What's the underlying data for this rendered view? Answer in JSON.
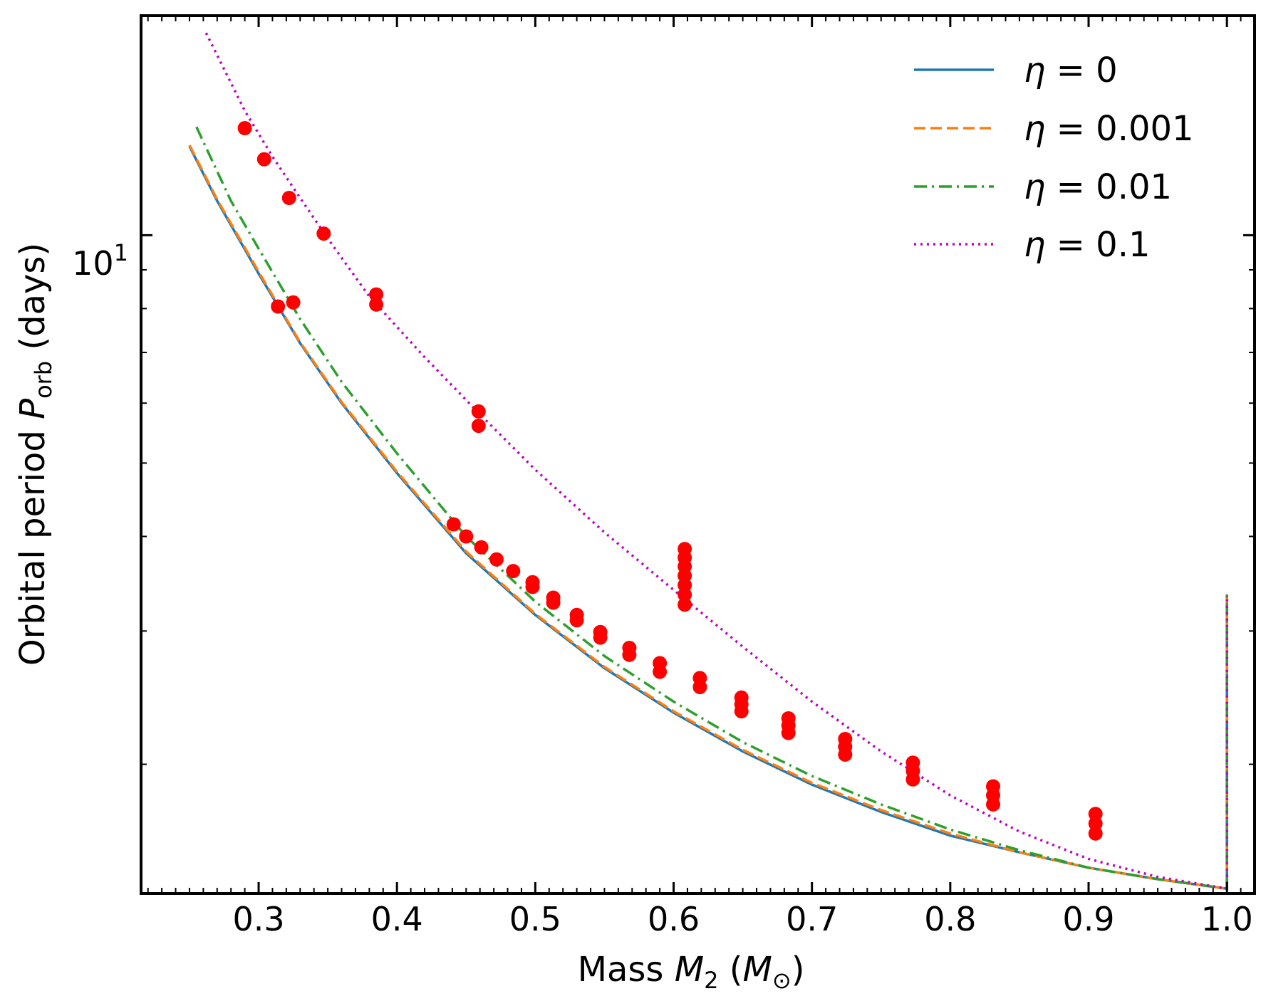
{
  "chart_data": {
    "type": "line",
    "xlabel": {
      "prefix": "Mass ",
      "var": "M",
      "sub": "2",
      "open": " (",
      "unit_var": "M",
      "unit_sub": "⊙",
      "close": ")"
    },
    "ylabel": {
      "prefix": "Orbital period ",
      "var": "P",
      "sub": "orb",
      "suffix": " (days)"
    },
    "xlim": [
      0.215,
      1.02
    ],
    "ylim": [
      1.35,
      19.5
    ],
    "y_scale": "log",
    "grid": false,
    "legend_position": "top-right",
    "x_ticks": [
      "0.3",
      "0.4",
      "0.5",
      "0.6",
      "0.7",
      "0.8",
      "0.9",
      "1.0"
    ],
    "y_major_tick": {
      "value": 10,
      "base": "10",
      "exp": "1"
    },
    "y_minor_ticks": [
      2,
      3,
      4,
      5,
      6,
      7,
      8,
      9
    ],
    "series": [
      {
        "name": "η = 0",
        "symbol": "η",
        "value": "0",
        "color": "#1f77b4",
        "dash": "solid",
        "x": [
          0.25,
          0.27,
          0.3,
          0.33,
          0.36,
          0.4,
          0.45,
          0.5,
          0.55,
          0.6,
          0.65,
          0.7,
          0.75,
          0.8,
          0.85,
          0.9,
          0.95,
          1.0,
          1.0
        ],
        "y": [
          13.1,
          11.1,
          8.9,
          7.2,
          6.0,
          4.85,
          3.8,
          3.15,
          2.68,
          2.34,
          2.08,
          1.88,
          1.73,
          1.61,
          1.53,
          1.46,
          1.41,
          1.37,
          3.35
        ]
      },
      {
        "name": "η = 0.001",
        "symbol": "η",
        "value": "0.001",
        "color": "#ff7f0e",
        "dash": "dashed",
        "x": [
          0.25,
          0.27,
          0.3,
          0.33,
          0.36,
          0.4,
          0.45,
          0.5,
          0.55,
          0.6,
          0.65,
          0.7,
          0.75,
          0.8,
          0.85,
          0.9,
          0.95,
          1.0,
          1.0
        ],
        "y": [
          13.15,
          11.15,
          8.95,
          7.22,
          6.02,
          4.87,
          3.82,
          3.16,
          2.69,
          2.35,
          2.09,
          1.89,
          1.74,
          1.62,
          1.53,
          1.46,
          1.41,
          1.37,
          3.35
        ]
      },
      {
        "name": "η = 0.01",
        "symbol": "η",
        "value": "0.01",
        "color": "#2ca02c",
        "dash": "dashdot",
        "x": [
          0.255,
          0.28,
          0.3,
          0.33,
          0.36,
          0.4,
          0.45,
          0.5,
          0.55,
          0.6,
          0.65,
          0.7,
          0.75,
          0.8,
          0.85,
          0.9,
          0.95,
          1.0,
          1.0
        ],
        "y": [
          13.9,
          11.1,
          9.6,
          7.75,
          6.4,
          5.15,
          4.0,
          3.28,
          2.78,
          2.42,
          2.14,
          1.93,
          1.77,
          1.64,
          1.54,
          1.46,
          1.41,
          1.37,
          3.35
        ]
      },
      {
        "name": "η = 0.1",
        "symbol": "η",
        "value": "0.1",
        "color": "#bf00bf",
        "dash": "dotted",
        "x": [
          0.262,
          0.29,
          0.31,
          0.33,
          0.35,
          0.38,
          0.42,
          0.46,
          0.5,
          0.55,
          0.6,
          0.65,
          0.7,
          0.75,
          0.8,
          0.85,
          0.9,
          0.95,
          1.0,
          1.0
        ],
        "y": [
          18.5,
          14.6,
          12.7,
          11.2,
          9.9,
          8.3,
          6.9,
          5.8,
          4.9,
          4.05,
          3.4,
          2.86,
          2.42,
          2.08,
          1.82,
          1.63,
          1.5,
          1.42,
          1.37,
          3.35
        ]
      }
    ],
    "markers": {
      "color": "#ff0000",
      "points": [
        [
          0.29,
          13.85
        ],
        [
          0.304,
          12.6
        ],
        [
          0.322,
          11.2
        ],
        [
          0.347,
          10.05
        ],
        [
          0.385,
          8.35
        ],
        [
          0.385,
          8.1
        ],
        [
          0.459,
          5.85
        ],
        [
          0.459,
          5.6
        ],
        [
          0.314,
          8.05
        ],
        [
          0.325,
          8.15
        ],
        [
          0.441,
          4.15
        ],
        [
          0.45,
          4.0
        ],
        [
          0.461,
          3.87
        ],
        [
          0.472,
          3.73
        ],
        [
          0.484,
          3.6
        ],
        [
          0.498,
          3.48
        ],
        [
          0.498,
          3.43
        ],
        [
          0.513,
          3.32
        ],
        [
          0.513,
          3.27
        ],
        [
          0.53,
          3.15
        ],
        [
          0.53,
          3.1
        ],
        [
          0.547,
          2.99
        ],
        [
          0.547,
          2.94
        ],
        [
          0.568,
          2.85
        ],
        [
          0.568,
          2.79
        ],
        [
          0.59,
          2.72
        ],
        [
          0.59,
          2.65
        ],
        [
          0.608,
          3.85
        ],
        [
          0.608,
          3.75
        ],
        [
          0.608,
          3.65
        ],
        [
          0.608,
          3.55
        ],
        [
          0.608,
          3.45
        ],
        [
          0.608,
          3.35
        ],
        [
          0.608,
          3.25
        ],
        [
          0.619,
          2.6
        ],
        [
          0.619,
          2.53
        ],
        [
          0.649,
          2.45
        ],
        [
          0.649,
          2.4
        ],
        [
          0.649,
          2.35
        ],
        [
          0.683,
          2.3
        ],
        [
          0.683,
          2.25
        ],
        [
          0.683,
          2.2
        ],
        [
          0.724,
          2.16
        ],
        [
          0.724,
          2.11
        ],
        [
          0.724,
          2.06
        ],
        [
          0.773,
          2.01
        ],
        [
          0.773,
          1.96
        ],
        [
          0.773,
          1.91
        ],
        [
          0.831,
          1.87
        ],
        [
          0.831,
          1.82
        ],
        [
          0.831,
          1.77
        ],
        [
          0.905,
          1.72
        ],
        [
          0.905,
          1.67
        ],
        [
          0.905,
          1.62
        ]
      ]
    }
  }
}
